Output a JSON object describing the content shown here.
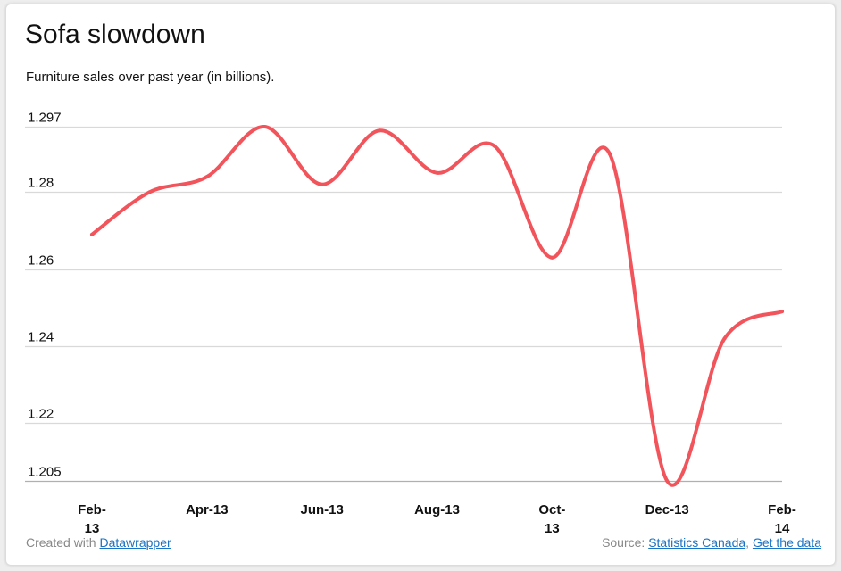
{
  "title": "Sofa slowdown",
  "subtitle": "Furniture sales over past year (in billions).",
  "footer": {
    "created_prefix": "Created with",
    "created_link": "Datawrapper",
    "source_prefix": "Source:",
    "source_link": "Statistics Canada",
    "separator": ",",
    "data_link": "Get the data"
  },
  "colors": {
    "line": "#f2545b",
    "grid": "#d9d9d9",
    "baseline": "#b0b0b0",
    "text": "#111111"
  },
  "chart_data": {
    "type": "line",
    "title": "Sofa slowdown",
    "subtitle": "Furniture sales over past year (in billions).",
    "xlabel": "",
    "ylabel": "",
    "x": [
      "Feb-13",
      "Mar-13",
      "Apr-13",
      "May-13",
      "Jun-13",
      "Jul-13",
      "Aug-13",
      "Sep-13",
      "Oct-13",
      "Nov-13",
      "Dec-13",
      "Jan-14",
      "Feb-14"
    ],
    "series": [
      {
        "values": [
          1.269,
          1.28,
          1.284,
          1.297,
          1.282,
          1.296,
          1.285,
          1.292,
          1.263,
          1.29,
          1.205,
          1.242,
          1.249
        ]
      }
    ],
    "yticks": [
      1.205,
      1.22,
      1.24,
      1.26,
      1.28,
      1.297
    ],
    "ylim": [
      1.205,
      1.297
    ],
    "xticks": [
      {
        "index": 0,
        "lines": [
          "Feb-",
          "13"
        ]
      },
      {
        "index": 2,
        "lines": [
          "Apr-13"
        ]
      },
      {
        "index": 4,
        "lines": [
          "Jun-13"
        ]
      },
      {
        "index": 6,
        "lines": [
          "Aug-13"
        ]
      },
      {
        "index": 8,
        "lines": [
          "Oct-",
          "13"
        ]
      },
      {
        "index": 10,
        "lines": [
          "Dec-13"
        ]
      },
      {
        "index": 12,
        "lines": [
          "Feb-",
          "14"
        ]
      }
    ],
    "grid": true,
    "legend": "none"
  }
}
